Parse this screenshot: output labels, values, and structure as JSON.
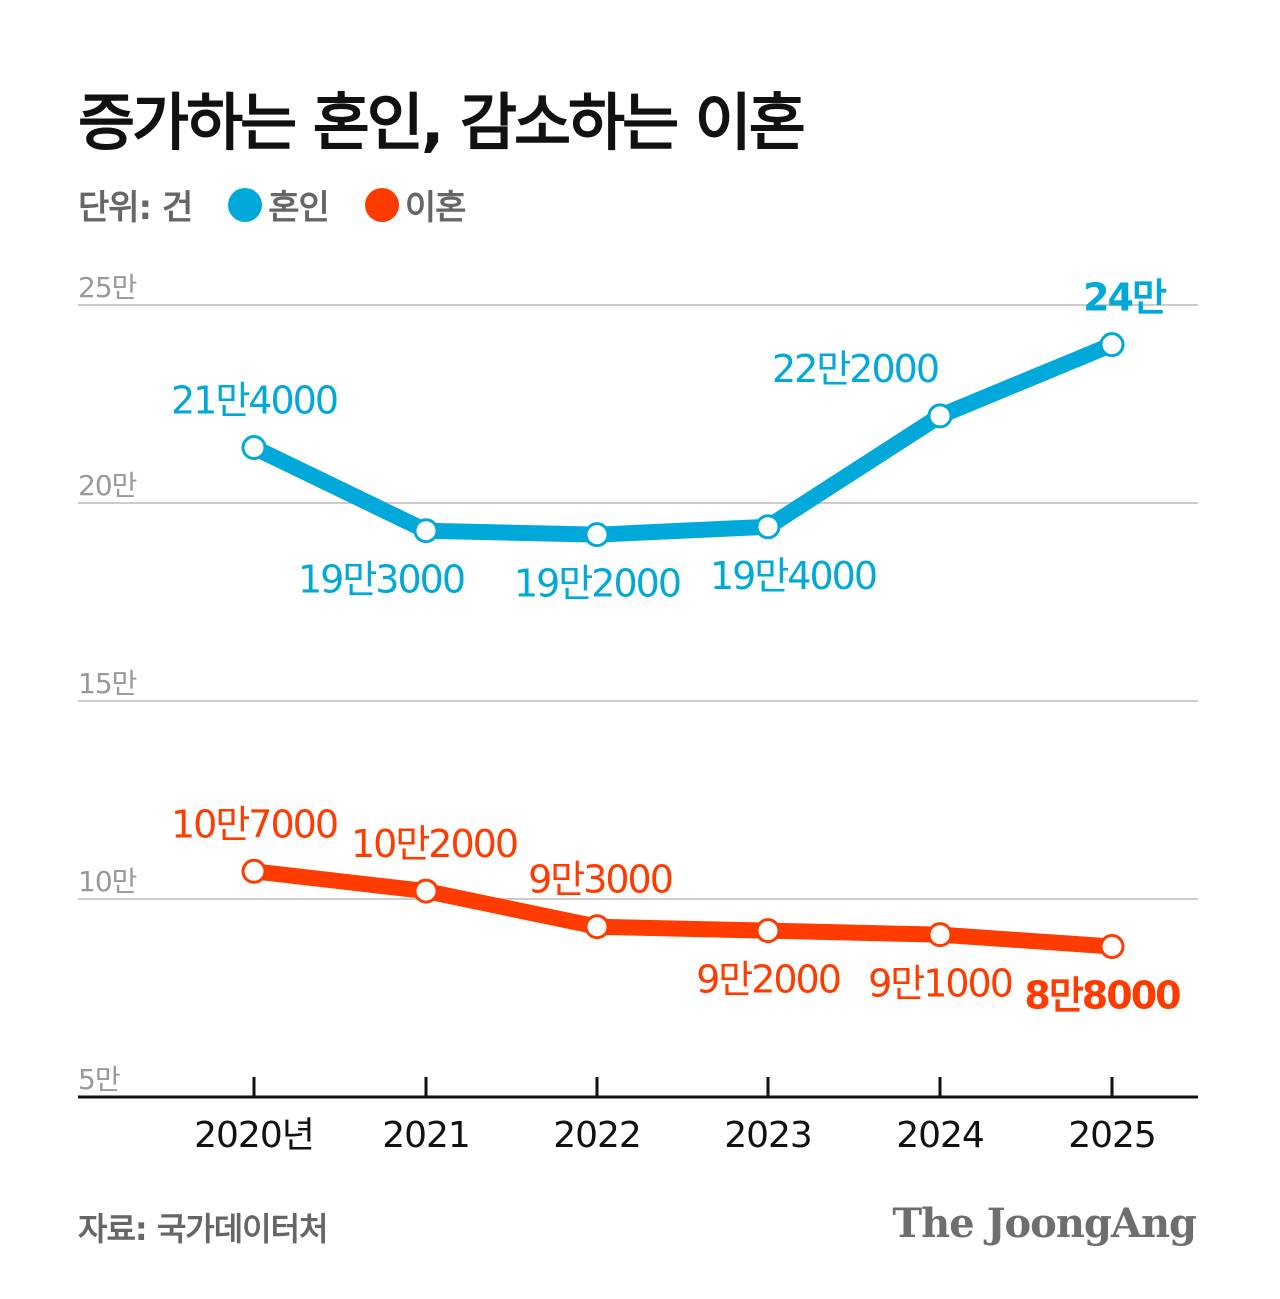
{
  "title": "증가하는 혼인, 감소하는 이혼",
  "unit_label": "단위: 건",
  "source": "자료: 국가데이터처",
  "logo": "The JoongAng",
  "colors": {
    "marriage": "#00A9DA",
    "divorce": "#FF3B00",
    "grid": "#cccccc",
    "axis": "#111111"
  },
  "chart_data": {
    "type": "line",
    "title": "증가하는 혼인, 감소하는 이혼",
    "x": [
      "2020",
      "2021",
      "2022",
      "2023",
      "2024",
      "2025"
    ],
    "x_tick_labels": [
      "2020년",
      "2021",
      "2022",
      "2023",
      "2024",
      "2025"
    ],
    "y_ticks": [
      50000,
      100000,
      150000,
      200000,
      250000
    ],
    "y_tick_labels": [
      "5만",
      "10만",
      "15만",
      "20만",
      "25만"
    ],
    "ylim": [
      50000,
      250000
    ],
    "grid": true,
    "legend_placement": "top-left",
    "series": [
      {
        "name": "혼인",
        "color": "#00A9DA",
        "values": [
          214000,
          193000,
          192000,
          194000,
          222000,
          240000
        ],
        "labels": [
          "21만4000",
          "19만3000",
          "19만2000",
          "19만4000",
          "22만2000",
          "24만"
        ]
      },
      {
        "name": "이혼",
        "color": "#FF3B00",
        "values": [
          107000,
          102000,
          93000,
          92000,
          91000,
          88000
        ],
        "labels": [
          "10만7000",
          "10만2000",
          "9만3000",
          "9만2000",
          "9만1000",
          "8만8000"
        ]
      }
    ]
  }
}
